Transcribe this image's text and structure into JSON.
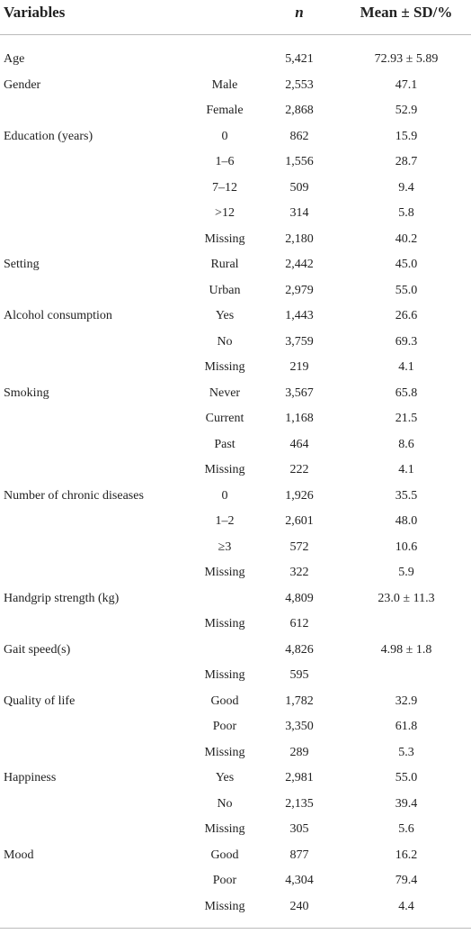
{
  "table": {
    "headers": {
      "variables": "Variables",
      "n": "n",
      "value": "Mean ± SD/%"
    },
    "rows": [
      {
        "variable": "Age",
        "n": "5,421",
        "value": "72.93 ± 5.89"
      },
      {
        "variable": "Gender",
        "group": "Male",
        "n": "2,553",
        "value": "47.1"
      },
      {
        "group": "Female",
        "n": "2,868",
        "value": "52.9"
      },
      {
        "variable": "Education (years)",
        "group": "0",
        "n": "862",
        "value": "15.9"
      },
      {
        "group": "1–6",
        "n": "1,556",
        "value": "28.7"
      },
      {
        "group": "7–12",
        "n": "509",
        "value": "9.4"
      },
      {
        "group": ">12",
        "n": "314",
        "value": "5.8"
      },
      {
        "group": "Missing",
        "n": "2,180",
        "value": "40.2"
      },
      {
        "variable": "Setting",
        "group": "Rural",
        "n": "2,442",
        "value": "45.0"
      },
      {
        "group": "Urban",
        "n": "2,979",
        "value": "55.0"
      },
      {
        "variable": "Alcohol consumption",
        "group": "Yes",
        "n": "1,443",
        "value": "26.6"
      },
      {
        "group": "No",
        "n": "3,759",
        "value": "69.3"
      },
      {
        "group": "Missing",
        "n": "219",
        "value": "4.1"
      },
      {
        "variable": "Smoking",
        "group": "Never",
        "n": "3,567",
        "value": "65.8"
      },
      {
        "group": "Current",
        "n": "1,168",
        "value": "21.5"
      },
      {
        "group": "Past",
        "n": "464",
        "value": "8.6"
      },
      {
        "group": "Missing",
        "n": "222",
        "value": "4.1"
      },
      {
        "variable": "Number of chronic diseases",
        "group": "0",
        "n": "1,926",
        "value": "35.5"
      },
      {
        "group": "1–2",
        "n": "2,601",
        "value": "48.0"
      },
      {
        "group": "≥3",
        "n": "572",
        "value": "10.6"
      },
      {
        "group": "Missing",
        "n": "322",
        "value": "5.9"
      },
      {
        "variable": "Handgrip strength (kg)",
        "n": "4,809",
        "value": "23.0 ± 11.3"
      },
      {
        "group": "Missing",
        "n": "612"
      },
      {
        "variable": "Gait speed(s)",
        "n": "4,826",
        "value": "4.98 ± 1.8"
      },
      {
        "group": "Missing",
        "n": "595"
      },
      {
        "variable": "Quality of life",
        "group": "Good",
        "n": "1,782",
        "value": "32.9"
      },
      {
        "group": "Poor",
        "n": "3,350",
        "value": "61.8"
      },
      {
        "group": "Missing",
        "n": "289",
        "value": "5.3"
      },
      {
        "variable": "Happiness",
        "group": "Yes",
        "n": "2,981",
        "value": "55.0"
      },
      {
        "group": "No",
        "n": "2,135",
        "value": "39.4"
      },
      {
        "group": "Missing",
        "n": "305",
        "value": "5.6"
      },
      {
        "variable": "Mood",
        "group": "Good",
        "n": "877",
        "value": "16.2"
      },
      {
        "group": "Poor",
        "n": "4,304",
        "value": "79.4"
      },
      {
        "group": "Missing",
        "n": "240",
        "value": "4.4"
      }
    ]
  }
}
